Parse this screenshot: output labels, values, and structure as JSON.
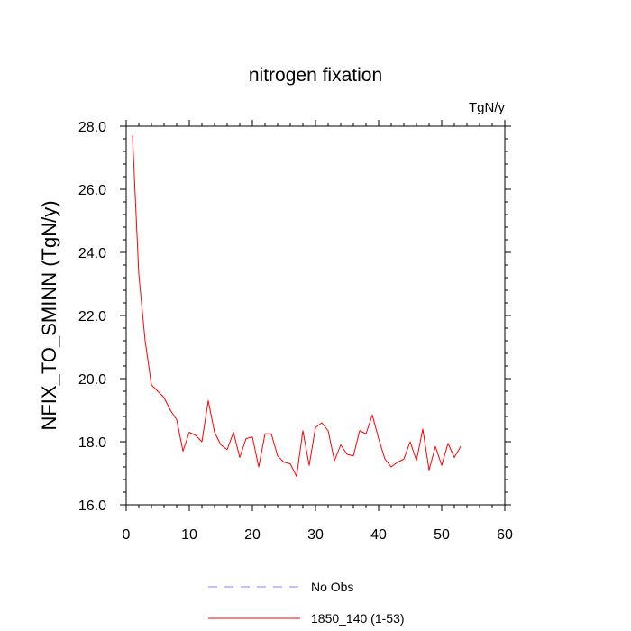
{
  "chart_data": {
    "type": "line",
    "title": "nitrogen fixation",
    "units_label": "TgN/y",
    "xlabel": "",
    "ylabel": "NFIX_TO_SMINN  (TgN/y)",
    "xlim": [
      0,
      60
    ],
    "ylim": [
      16.0,
      28.0
    ],
    "x_ticks": [
      0,
      10,
      20,
      30,
      40,
      50,
      60
    ],
    "x_tick_labels": [
      "0",
      "10",
      "20",
      "30",
      "40",
      "50",
      "60"
    ],
    "y_ticks": [
      16,
      18,
      20,
      22,
      24,
      26,
      28
    ],
    "y_tick_labels": [
      "16.0",
      "18.0",
      "20.0",
      "22.0",
      "24.0",
      "26.0",
      "28.0"
    ],
    "grid": false,
    "series": [
      {
        "name": "1850_140 (1-53)",
        "color": "#ff0000",
        "style": "solid",
        "x": [
          1,
          2,
          3,
          4,
          5,
          6,
          7,
          8,
          9,
          10,
          11,
          12,
          13,
          14,
          15,
          16,
          17,
          18,
          19,
          20,
          21,
          22,
          23,
          24,
          25,
          26,
          27,
          28,
          29,
          30,
          31,
          32,
          33,
          34,
          35,
          36,
          37,
          38,
          39,
          40,
          41,
          42,
          43,
          44,
          45,
          46,
          47,
          48,
          49,
          50,
          51,
          52,
          53
        ],
        "values": [
          27.7,
          23.3,
          21.2,
          19.8,
          19.6,
          19.4,
          19.0,
          18.7,
          17.7,
          18.3,
          18.2,
          18.0,
          19.3,
          18.3,
          17.9,
          17.75,
          18.3,
          17.5,
          18.1,
          18.15,
          17.2,
          18.25,
          18.25,
          17.55,
          17.35,
          17.3,
          16.9,
          18.35,
          17.25,
          18.45,
          18.6,
          18.35,
          17.4,
          17.9,
          17.6,
          17.55,
          18.35,
          18.25,
          18.85,
          18.1,
          17.45,
          17.2,
          17.35,
          17.45,
          18.0,
          17.4,
          18.4,
          17.1,
          17.85,
          17.25,
          17.95,
          17.5,
          17.85
        ]
      }
    ],
    "legend": {
      "placement": "bottom",
      "entries": [
        {
          "label": "No Obs",
          "color": "#8080ff",
          "style": "dashed"
        },
        {
          "label": "1850_140 (1-53)",
          "color": "#ff0000",
          "style": "solid"
        }
      ]
    }
  }
}
